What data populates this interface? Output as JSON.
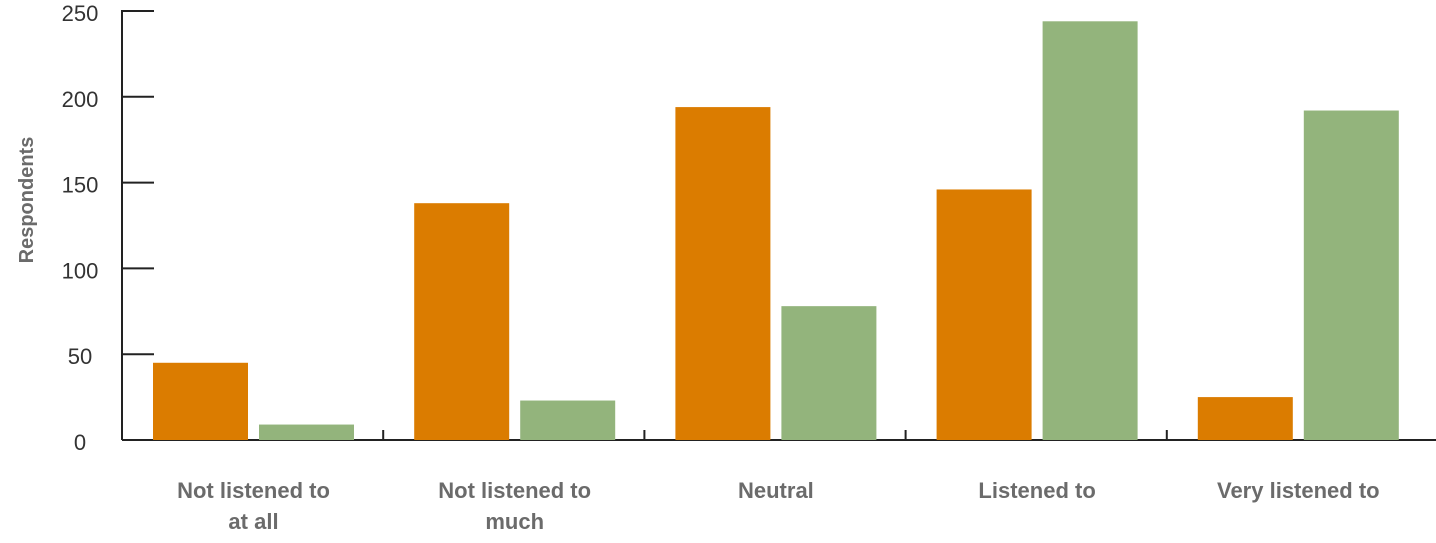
{
  "chart_data": {
    "type": "bar",
    "title": "",
    "xlabel": "",
    "ylabel": "Respondents",
    "ylim": [
      0,
      250
    ],
    "yticks": [
      0,
      50,
      100,
      150,
      200,
      250
    ],
    "grid": false,
    "legend": "none",
    "categories": [
      [
        "Not listened to",
        "at all"
      ],
      [
        "Not listened to",
        "much"
      ],
      [
        "Neutral"
      ],
      [
        "Listened to"
      ],
      [
        "Very listened to"
      ]
    ],
    "series": [
      {
        "color": "#DB7C00",
        "values": [
          45,
          138,
          194,
          146,
          25
        ]
      },
      {
        "color": "#93B47C",
        "values": [
          9,
          23,
          78,
          244,
          192
        ]
      }
    ]
  }
}
